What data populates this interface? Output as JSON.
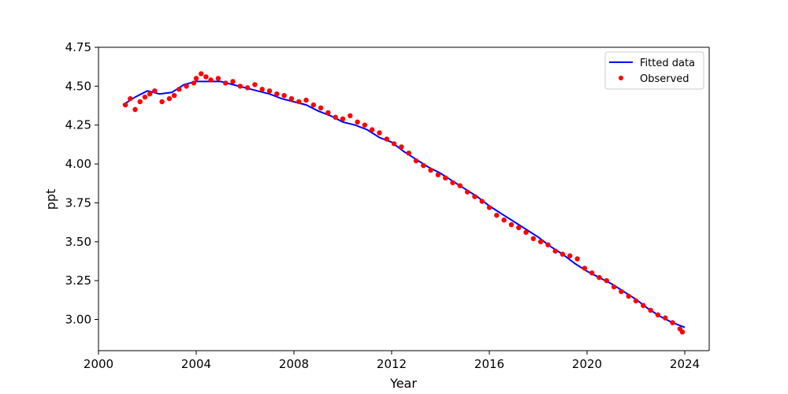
{
  "chart_data": {
    "type": "scatter",
    "title": "",
    "xlabel": "Year",
    "ylabel": "ppt",
    "xlim": [
      2000.0,
      2025.0
    ],
    "ylim": [
      2.8,
      4.75
    ],
    "x_ticks": [
      2000,
      2004,
      2008,
      2012,
      2016,
      2020,
      2024
    ],
    "y_ticks": [
      3.0,
      3.25,
      3.5,
      3.75,
      4.0,
      4.25,
      4.5,
      4.75
    ],
    "x_tick_labels": [
      "2000",
      "2004",
      "2008",
      "2012",
      "2016",
      "2020",
      "2024"
    ],
    "y_tick_labels": [
      "3.00",
      "3.25",
      "3.50",
      "3.75",
      "4.00",
      "4.25",
      "4.50",
      "4.75"
    ],
    "grid": false,
    "legend": {
      "placement": "top-right",
      "entries": [
        {
          "label": "Fitted data",
          "kind": "line",
          "color": "#0000ff"
        },
        {
          "label": "Observed",
          "kind": "scatter",
          "color": "#ff0000"
        }
      ]
    },
    "series": [
      {
        "name": "Fitted data",
        "kind": "line",
        "color": "#0000ff",
        "x": [
          2001.0,
          2001.5,
          2002.0,
          2002.5,
          2003.0,
          2003.5,
          2004.0,
          2004.5,
          2005.0,
          2005.5,
          2006.0,
          2006.5,
          2007.0,
          2007.5,
          2008.0,
          2008.5,
          2009.0,
          2009.5,
          2010.0,
          2010.5,
          2011.0,
          2011.5,
          2012.0,
          2012.5,
          2013.0,
          2013.5,
          2014.0,
          2014.5,
          2015.0,
          2015.5,
          2016.0,
          2016.5,
          2017.0,
          2017.5,
          2018.0,
          2018.5,
          2019.0,
          2019.5,
          2020.0,
          2020.5,
          2021.0,
          2021.5,
          2022.0,
          2022.5,
          2023.0,
          2023.5,
          2024.0
        ],
        "y": [
          4.38,
          4.43,
          4.47,
          4.45,
          4.46,
          4.51,
          4.53,
          4.53,
          4.53,
          4.51,
          4.49,
          4.47,
          4.45,
          4.42,
          4.4,
          4.38,
          4.34,
          4.31,
          4.27,
          4.25,
          4.22,
          4.17,
          4.14,
          4.08,
          4.03,
          3.98,
          3.94,
          3.89,
          3.84,
          3.79,
          3.73,
          3.68,
          3.63,
          3.58,
          3.53,
          3.47,
          3.42,
          3.36,
          3.31,
          3.27,
          3.23,
          3.18,
          3.13,
          3.07,
          3.02,
          2.98,
          2.95
        ]
      },
      {
        "name": "Observed",
        "kind": "scatter",
        "color": "#ff0000",
        "x": [
          2001.1,
          2001.3,
          2001.5,
          2001.7,
          2001.9,
          2002.1,
          2002.3,
          2002.6,
          2002.9,
          2003.1,
          2003.3,
          2003.6,
          2003.9,
          2004.0,
          2004.2,
          2004.4,
          2004.6,
          2004.9,
          2005.2,
          2005.5,
          2005.8,
          2006.1,
          2006.4,
          2006.7,
          2007.0,
          2007.3,
          2007.6,
          2007.9,
          2008.2,
          2008.5,
          2008.8,
          2009.1,
          2009.4,
          2009.7,
          2010.0,
          2010.3,
          2010.6,
          2010.9,
          2011.2,
          2011.5,
          2011.8,
          2012.1,
          2012.4,
          2012.7,
          2013.0,
          2013.3,
          2013.6,
          2013.9,
          2014.2,
          2014.5,
          2014.8,
          2015.1,
          2015.4,
          2015.7,
          2016.0,
          2016.3,
          2016.6,
          2016.9,
          2017.2,
          2017.5,
          2017.8,
          2018.1,
          2018.4,
          2018.7,
          2019.0,
          2019.3,
          2019.6,
          2019.9,
          2020.2,
          2020.5,
          2020.8,
          2021.1,
          2021.4,
          2021.7,
          2022.0,
          2022.3,
          2022.6,
          2022.9,
          2023.2,
          2023.5,
          2023.8,
          2023.9
        ],
        "y": [
          4.38,
          4.42,
          4.35,
          4.4,
          4.43,
          4.45,
          4.47,
          4.4,
          4.42,
          4.44,
          4.48,
          4.5,
          4.52,
          4.55,
          4.58,
          4.56,
          4.54,
          4.55,
          4.52,
          4.53,
          4.5,
          4.49,
          4.51,
          4.48,
          4.47,
          4.45,
          4.44,
          4.42,
          4.4,
          4.41,
          4.38,
          4.36,
          4.33,
          4.3,
          4.29,
          4.31,
          4.27,
          4.25,
          4.22,
          4.2,
          4.16,
          4.13,
          4.11,
          4.07,
          4.02,
          3.99,
          3.96,
          3.93,
          3.91,
          3.88,
          3.86,
          3.82,
          3.79,
          3.76,
          3.72,
          3.67,
          3.64,
          3.61,
          3.59,
          3.56,
          3.52,
          3.5,
          3.48,
          3.44,
          3.42,
          3.41,
          3.39,
          3.33,
          3.3,
          3.27,
          3.25,
          3.21,
          3.18,
          3.15,
          3.12,
          3.09,
          3.06,
          3.03,
          3.01,
          2.98,
          2.94,
          2.92
        ]
      }
    ]
  }
}
